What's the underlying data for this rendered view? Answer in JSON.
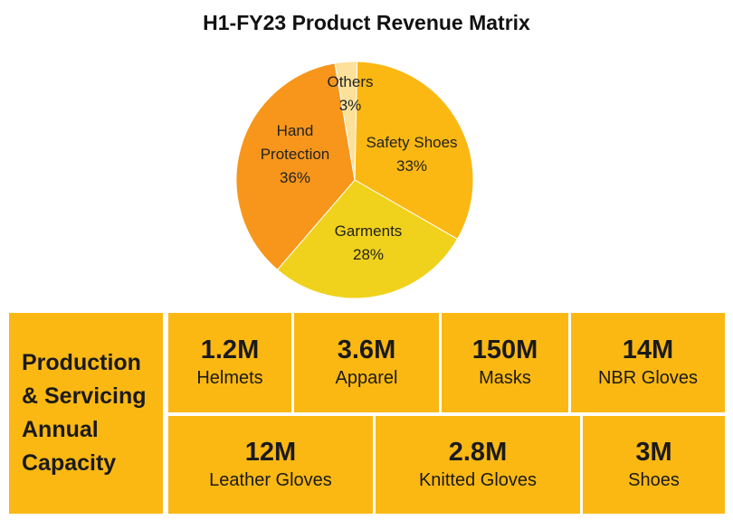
{
  "chart_data": {
    "type": "pie",
    "title": "H1-FY23 Product Revenue Matrix",
    "slices": [
      {
        "label": "Safety Shoes",
        "pct_label": "33%",
        "value": 33,
        "color": "#fbb813"
      },
      {
        "label": "Garments",
        "pct_label": "28%",
        "value": 28,
        "color": "#f0d21c"
      },
      {
        "label": "Hand Protection",
        "pct_label": "36%",
        "value": 36,
        "color": "#f7961b"
      },
      {
        "label": "Others",
        "pct_label": "3%",
        "value": 3,
        "color": "#fde19a"
      }
    ]
  },
  "capacity": {
    "heading_lines": [
      "Production",
      "& Servicing",
      "Annual",
      "Capacity"
    ],
    "cell_color": "#fbb813",
    "row1": [
      {
        "value": "1.2M",
        "label": "Helmets"
      },
      {
        "value": "3.6M",
        "label": "Apparel"
      },
      {
        "value": "150M",
        "label": "Masks"
      },
      {
        "value": "14M",
        "label": "NBR Gloves"
      }
    ],
    "row2": [
      {
        "value": "12M",
        "label": "Leather Gloves"
      },
      {
        "value": "2.8M",
        "label": "Knitted Gloves"
      },
      {
        "value": "3M",
        "label": "Shoes"
      }
    ]
  }
}
